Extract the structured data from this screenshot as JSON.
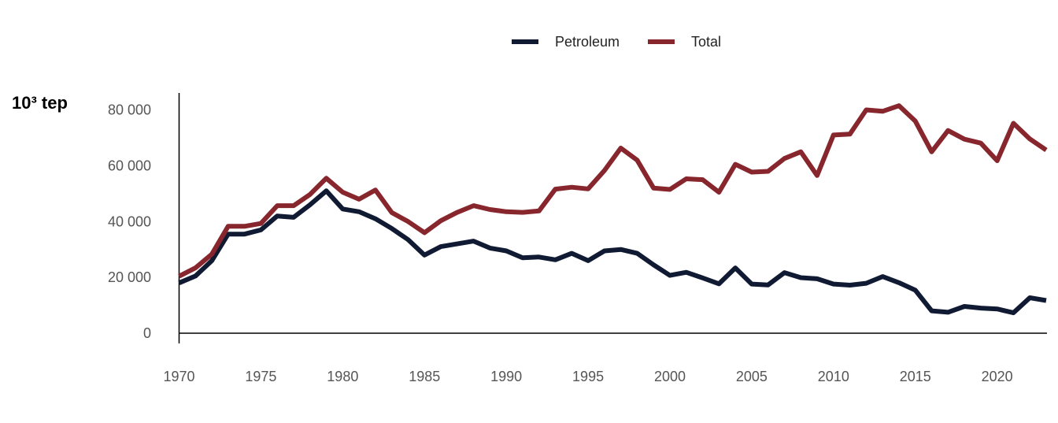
{
  "chart_data": {
    "type": "line",
    "unit_label": "10³ tep",
    "xlabel": "",
    "ylabel": "",
    "xlim": [
      1970,
      2023
    ],
    "ylim": [
      0,
      85000
    ],
    "y_ticks": [
      {
        "value": 0,
        "label": "0"
      },
      {
        "value": 20000,
        "label": "20 000"
      },
      {
        "value": 40000,
        "label": "40 000"
      },
      {
        "value": 60000,
        "label": "60 000"
      },
      {
        "value": 80000,
        "label": "80 000"
      }
    ],
    "x_ticks": [
      {
        "value": 1970,
        "label": "1970"
      },
      {
        "value": 1975,
        "label": "1975"
      },
      {
        "value": 1980,
        "label": "1980"
      },
      {
        "value": 1985,
        "label": "1985"
      },
      {
        "value": 1990,
        "label": "1990"
      },
      {
        "value": 1995,
        "label": "1995"
      },
      {
        "value": 2000,
        "label": "2000"
      },
      {
        "value": 2005,
        "label": "2005"
      },
      {
        "value": 2010,
        "label": "2010"
      },
      {
        "value": 2015,
        "label": "2015"
      },
      {
        "value": 2020,
        "label": "2020"
      }
    ],
    "grid": false,
    "legend_position": "top-center",
    "x": [
      1970,
      1971,
      1972,
      1973,
      1974,
      1975,
      1976,
      1977,
      1978,
      1979,
      1980,
      1981,
      1982,
      1983,
      1984,
      1985,
      1986,
      1987,
      1988,
      1989,
      1990,
      1991,
      1992,
      1993,
      1994,
      1995,
      1996,
      1997,
      1998,
      1999,
      2000,
      2001,
      2002,
      2003,
      2004,
      2005,
      2006,
      2007,
      2008,
      2009,
      2010,
      2011,
      2012,
      2013,
      2014,
      2015,
      2016,
      2017,
      2018,
      2019,
      2020,
      2021,
      2022,
      2023
    ],
    "series": [
      {
        "name": "Petroleum",
        "color": "#101b33",
        "values": [
          18000,
          20500,
          26000,
          35500,
          35500,
          37000,
          42000,
          41500,
          46000,
          51000,
          44500,
          43500,
          41000,
          37500,
          33500,
          28000,
          31000,
          32000,
          33000,
          30500,
          29500,
          27000,
          27300,
          26300,
          28600,
          26000,
          29500,
          30000,
          28600,
          24500,
          20700,
          21800,
          19800,
          17700,
          23400,
          17600,
          17300,
          21700,
          19900,
          19500,
          17600,
          17200,
          17900,
          20300,
          18100,
          15400,
          8000,
          7500,
          9600,
          9000,
          8700,
          7300,
          12700,
          11700
        ]
      },
      {
        "name": "Total",
        "color": "#87262c",
        "values": [
          20400,
          23400,
          28300,
          38300,
          38300,
          39300,
          45700,
          45700,
          49700,
          55500,
          50500,
          48000,
          51300,
          43200,
          40000,
          36000,
          40300,
          43300,
          45700,
          44300,
          43500,
          43300,
          43800,
          51600,
          52300,
          51700,
          58300,
          66300,
          62000,
          52000,
          51500,
          55300,
          55000,
          50500,
          60500,
          57700,
          58000,
          62600,
          65000,
          56500,
          71000,
          71300,
          80000,
          79500,
          81500,
          76000,
          65000,
          72600,
          69500,
          68100,
          61800,
          75200,
          69600,
          65600
        ]
      }
    ]
  }
}
